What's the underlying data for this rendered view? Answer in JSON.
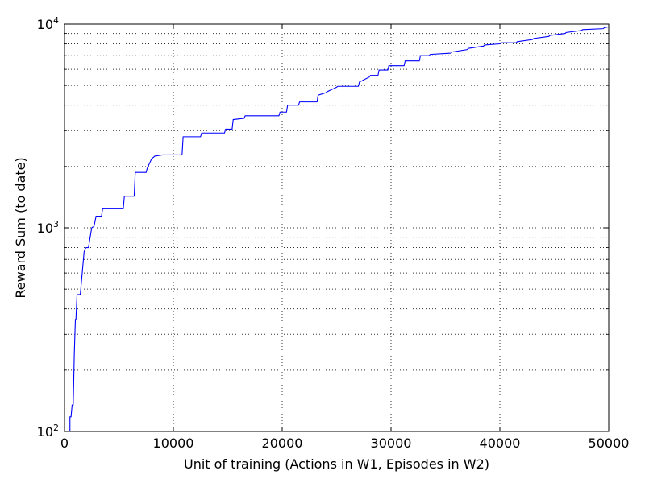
{
  "chart_data": {
    "type": "line",
    "title": "",
    "xlabel": "Unit of training (Actions in W1, Episodes in W2)",
    "ylabel": "Reward Sum (to date)",
    "xlim": [
      0,
      50000
    ],
    "ylim": [
      100,
      10000
    ],
    "yscale": "log",
    "grid": true,
    "x_ticks": [
      0,
      10000,
      20000,
      30000,
      40000,
      50000
    ],
    "x_tick_labels": [
      "0",
      "10000",
      "20000",
      "30000",
      "40000",
      "50000"
    ],
    "y_ticks": [
      100,
      1000,
      10000
    ],
    "y_tick_labels": [
      {
        "base": "10",
        "exp": "2"
      },
      {
        "base": "10",
        "exp": "3"
      },
      {
        "base": "10",
        "exp": "4"
      }
    ],
    "series": [
      {
        "color": "#0000ff",
        "x": [
          500,
          500,
          600,
          700,
          800,
          900,
          1000,
          1050,
          1150,
          1250,
          1350,
          1450,
          1800,
          1900,
          2000,
          2200,
          2500,
          2600,
          2700,
          2900,
          3000,
          3400,
          3500,
          4200,
          4300,
          5400,
          5500,
          6400,
          6500,
          7500,
          7600,
          8000,
          8300,
          9000,
          10000,
          10800,
          10900,
          12500,
          12600,
          14700,
          14800,
          15400,
          15500,
          16500,
          16600,
          19700,
          19800,
          20400,
          20500,
          21500,
          21600,
          23200,
          23300,
          24000,
          24100,
          25000,
          25100,
          27000,
          27100,
          28000,
          28100,
          28800,
          28900,
          29700,
          29800,
          31200,
          31300,
          32600,
          32700,
          33500,
          33600,
          35500,
          35600,
          37000,
          37100,
          38500,
          38600,
          40000,
          40100,
          41500,
          41600,
          43000,
          43100,
          44500,
          44600,
          46000,
          46100,
          47500,
          47600,
          49500,
          49600,
          50000
        ],
        "y": [
          100,
          118,
          118,
          135,
          135,
          240,
          355,
          355,
          470,
          470,
          470,
          470,
          760,
          790,
          800,
          800,
          1000,
          1010,
          1010,
          1140,
          1140,
          1140,
          1240,
          1240,
          1240,
          1240,
          1430,
          1430,
          1870,
          1870,
          1960,
          2180,
          2250,
          2280,
          2280,
          2280,
          2800,
          2800,
          2920,
          2920,
          3050,
          3050,
          3400,
          3450,
          3550,
          3550,
          3700,
          3700,
          4000,
          4000,
          4150,
          4150,
          4480,
          4600,
          4650,
          4900,
          4950,
          4950,
          5200,
          5500,
          5600,
          5600,
          5950,
          5950,
          6250,
          6250,
          6600,
          6600,
          7000,
          7000,
          7100,
          7200,
          7300,
          7500,
          7600,
          7800,
          7900,
          8000,
          8100,
          8100,
          8200,
          8400,
          8500,
          8700,
          8800,
          9000,
          9100,
          9300,
          9400,
          9500,
          9600,
          9700
        ]
      }
    ]
  }
}
